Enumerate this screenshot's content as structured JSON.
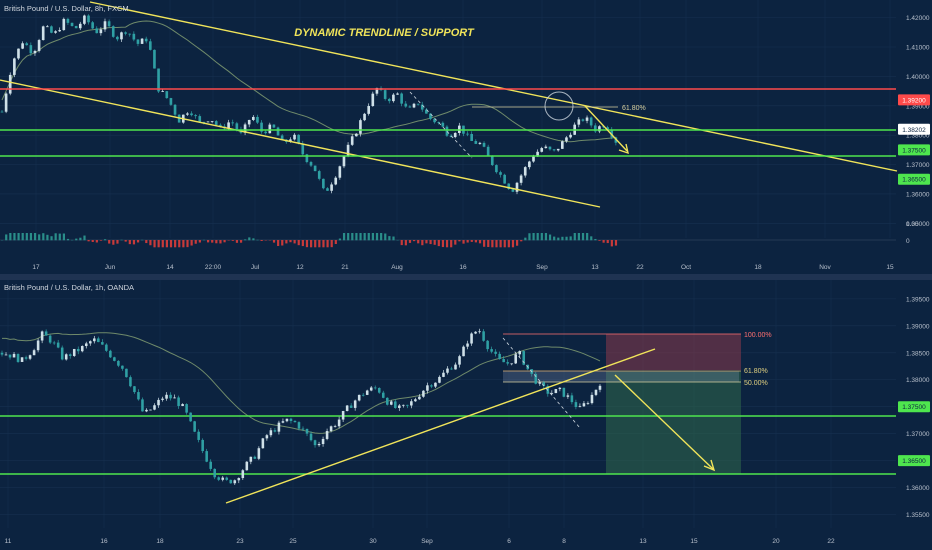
{
  "colors": {
    "background": "#0c2340",
    "divider": "#1f3352",
    "grid": "#17304f",
    "axis_text": "#b8c0cc",
    "candle_up": "#cfe0e8",
    "candle_down": "#2fa0a4",
    "trendline": "#f0e45a",
    "support": "#4ee64e",
    "resistance": "#ff4a4a",
    "ma": "#6f8a6a",
    "fib": "#d8d0a0",
    "osc_pos": "#2a8e8a",
    "osc_neg": "#c83a3a",
    "target_zone": "#2f6a4a",
    "stop_zone": "#8a3a4a",
    "fib_100": "#ff7070"
  },
  "chart_data": [
    {
      "type": "candlestick",
      "symbol": "British Pound / U.S. Dollar, 8h, FXCM",
      "title": "DYNAMIC TRENDLINE / SUPPORT",
      "x_ticks": [
        "17",
        "Jun",
        "14",
        "22:00",
        "Jul",
        "12",
        "21",
        "Aug",
        "16",
        "Sep",
        "13",
        "22",
        "Oct",
        "18",
        "Nov",
        "15"
      ],
      "y_ticks": [
        1.42,
        1.41,
        1.4,
        1.39,
        1.38,
        1.37,
        1.36,
        1.35
      ],
      "ylim": [
        1.345,
        1.426
      ],
      "levels": [
        {
          "label": "1.39200",
          "value": 1.392,
          "kind": "resistance"
        },
        {
          "label": "1.38202",
          "value": 1.382,
          "kind": "price"
        },
        {
          "label": "1.37500",
          "value": 1.375,
          "kind": "support"
        },
        {
          "label": "1.36500",
          "value": 1.365,
          "kind": "support"
        }
      ],
      "fib_label": "61.80%",
      "oscillator": {
        "ticks": [
          "0.00",
          "0"
        ]
      },
      "path": [
        1.388,
        1.405,
        1.412,
        1.408,
        1.417,
        1.414,
        1.419,
        1.416,
        1.42,
        1.415,
        1.418,
        1.413,
        1.416,
        1.411,
        1.413,
        1.396,
        1.392,
        1.385,
        1.389,
        1.384,
        1.386,
        1.382,
        1.385,
        1.38,
        1.387,
        1.381,
        1.383,
        1.377,
        1.38,
        1.373,
        1.369,
        1.36,
        1.366,
        1.374,
        1.381,
        1.389,
        1.396,
        1.392,
        1.394,
        1.388,
        1.391,
        1.386,
        1.384,
        1.38,
        1.383,
        1.378,
        1.377,
        1.371,
        1.366,
        1.361,
        1.367,
        1.373,
        1.376,
        1.374,
        1.378,
        1.383,
        1.386,
        1.382,
        1.384,
        1.378
      ]
    },
    {
      "type": "candlestick",
      "symbol": "British Pound / U.S. Dollar, 1h, OANDA",
      "x_ticks": [
        "11",
        "16",
        "18",
        "23",
        "25",
        "30",
        "Sep",
        "6",
        "8",
        "13",
        "15",
        "20",
        "22"
      ],
      "y_ticks": [
        1.395,
        1.39,
        1.385,
        1.38,
        1.375,
        1.37,
        1.365,
        1.36,
        1.355
      ],
      "ylim": [
        1.3525,
        1.3985
      ],
      "levels": [
        {
          "label": "1.37500",
          "value": 1.375,
          "kind": "support"
        },
        {
          "label": "1.36500",
          "value": 1.365,
          "kind": "support"
        }
      ],
      "fib_labels": [
        "100.00%",
        "61.80%",
        "50.00%"
      ],
      "path": [
        1.385,
        1.3845,
        1.3835,
        1.3855,
        1.3885,
        1.387,
        1.384,
        1.385,
        1.386,
        1.3875,
        1.386,
        1.384,
        1.382,
        1.378,
        1.3735,
        1.375,
        1.377,
        1.3765,
        1.3745,
        1.37,
        1.366,
        1.3625,
        1.361,
        1.3615,
        1.364,
        1.366,
        1.3695,
        1.371,
        1.3725,
        1.372,
        1.37,
        1.3675,
        1.3705,
        1.372,
        1.3745,
        1.3765,
        1.378,
        1.3785,
        1.376,
        1.3745,
        1.375,
        1.377,
        1.379,
        1.38,
        1.382,
        1.3835,
        1.3875,
        1.3895,
        1.386,
        1.3835,
        1.383,
        1.385,
        1.3815,
        1.379,
        1.3775,
        1.378,
        1.3765,
        1.3745,
        1.3765,
        1.3795
      ]
    }
  ]
}
